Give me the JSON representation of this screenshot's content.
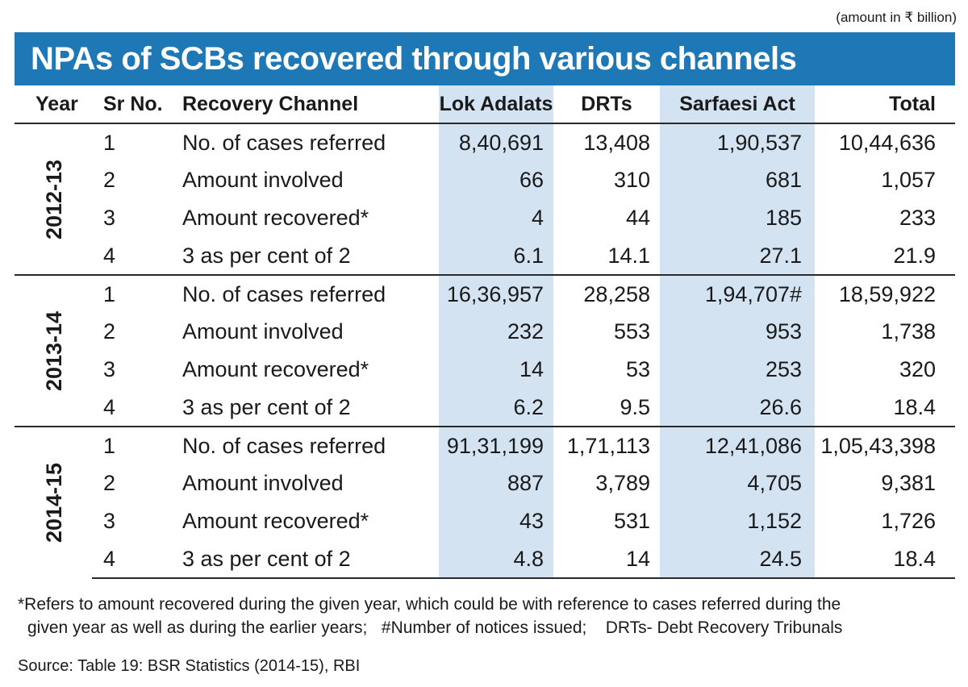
{
  "unit_note": "(amount in ₹ billion)",
  "chart_data": {
    "type": "table",
    "title": "NPAs of SCBs recovered through various channels",
    "columns": [
      "Year",
      "Sr No.",
      "Recovery Channel",
      "Lok Adalats",
      "DRTs",
      "Sarfaesi Act",
      "Total"
    ],
    "groups": [
      {
        "year": "2012-13",
        "rows": [
          {
            "sr": "1",
            "channel": "No. of  cases referred",
            "lok_adalats": "8,40,691",
            "drts": "13,408",
            "sarfaesi": "1,90,537",
            "total": "10,44,636"
          },
          {
            "sr": "2",
            "channel": "Amount involved",
            "lok_adalats": "66",
            "drts": "310",
            "sarfaesi": "681",
            "total": "1,057"
          },
          {
            "sr": "3",
            "channel": "Amount recovered*",
            "lok_adalats": "4",
            "drts": "44",
            "sarfaesi": "185",
            "total": "233"
          },
          {
            "sr": "4",
            "channel": "3 as  per cent of 2",
            "lok_adalats": "6.1",
            "drts": "14.1",
            "sarfaesi": "27.1",
            "total": "21.9"
          }
        ]
      },
      {
        "year": "2013-14",
        "rows": [
          {
            "sr": "1",
            "channel": "No. of  cases referred",
            "lok_adalats": "16,36,957",
            "drts": "28,258",
            "sarfaesi": "1,94,707#",
            "total": "18,59,922"
          },
          {
            "sr": "2",
            "channel": "Amount involved",
            "lok_adalats": "232",
            "drts": "553",
            "sarfaesi": "953",
            "total": "1,738"
          },
          {
            "sr": "3",
            "channel": "Amount recovered*",
            "lok_adalats": "14",
            "drts": "53",
            "sarfaesi": "253",
            "total": "320"
          },
          {
            "sr": "4",
            "channel": "3 as  per cent of 2",
            "lok_adalats": "6.2",
            "drts": "9.5",
            "sarfaesi": "26.6",
            "total": "18.4"
          }
        ]
      },
      {
        "year": "2014-15",
        "rows": [
          {
            "sr": "1",
            "channel": "No. of  cases referred",
            "lok_adalats": "91,31,199",
            "drts": "1,71,113",
            "sarfaesi": "12,41,086",
            "total": "1,05,43,398"
          },
          {
            "sr": "2",
            "channel": "Amount involved",
            "lok_adalats": "887",
            "drts": "3,789",
            "sarfaesi": "4,705",
            "total": "9,381"
          },
          {
            "sr": "3",
            "channel": "Amount recovered*",
            "lok_adalats": "43",
            "drts": "531",
            "sarfaesi": "1,152",
            "total": "1,726"
          },
          {
            "sr": "4",
            "channel": "3 as  per cent of 2",
            "lok_adalats": "4.8",
            "drts": "14",
            "sarfaesi": "24.5",
            "total": "18.4"
          }
        ]
      }
    ]
  },
  "footnotes": {
    "line1": "*Refers to amount recovered during the given year, which could be with reference to cases  referred during the",
    "line2_a": "given year as well as during the earlier years;",
    "line2_b": "#Number of notices issued;",
    "line2_c": "DRTs- Debt Recovery Tribunals"
  },
  "source": "Source: Table 19: BSR Statistics (2014-15), RBI",
  "colors": {
    "banner": "#1e78b6",
    "shaded_column": "#d3e3f1",
    "text": "#1a1a1a"
  }
}
